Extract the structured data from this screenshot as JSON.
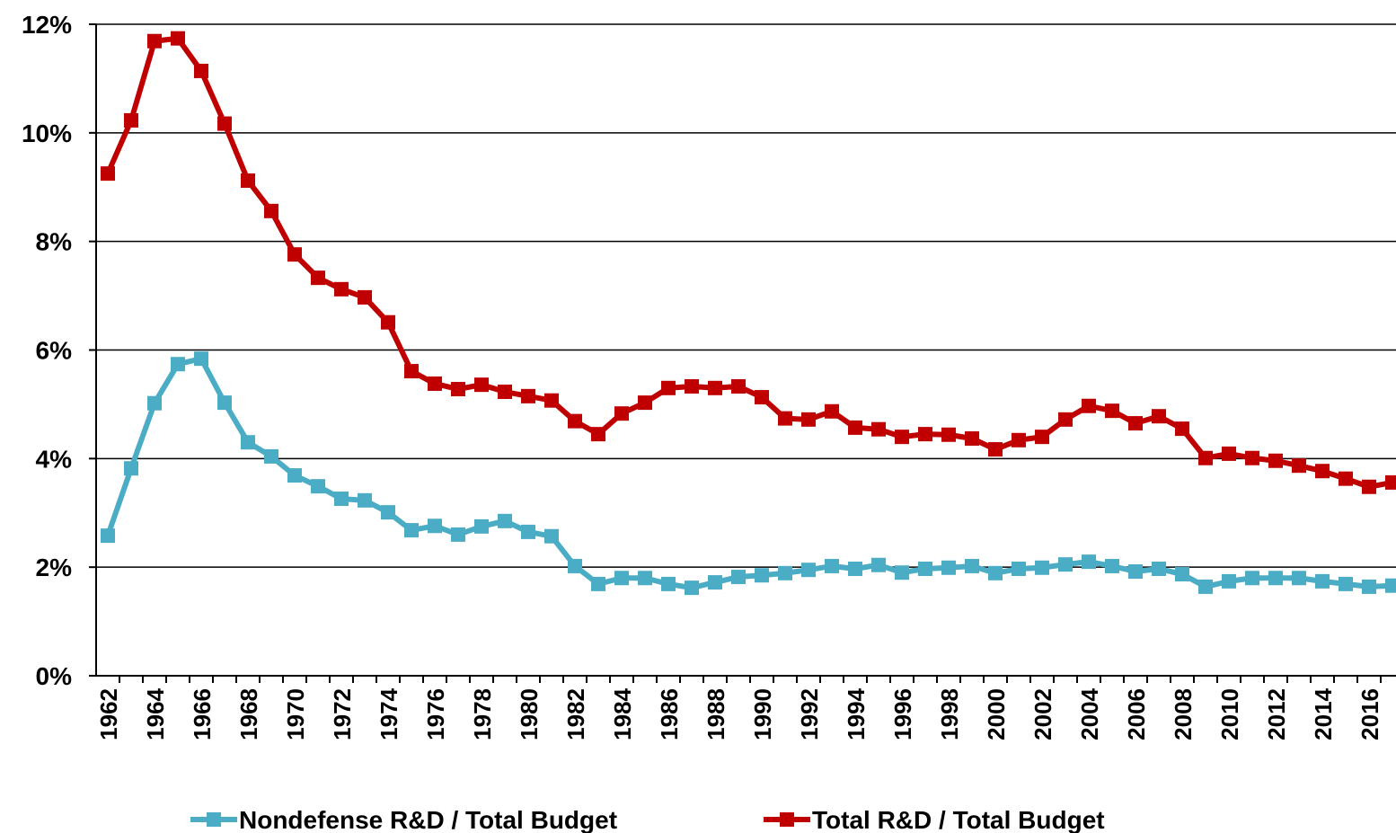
{
  "chart_data": {
    "type": "line",
    "categories": [
      "1962",
      null,
      "1964",
      null,
      "1966",
      null,
      "1968",
      null,
      "1970",
      null,
      "1972",
      null,
      "1974",
      null,
      "1976",
      null,
      "1978",
      null,
      "1980",
      null,
      "1982",
      null,
      "1984",
      null,
      "1986",
      null,
      "1988",
      null,
      "1990",
      null,
      "1992",
      null,
      "1994",
      null,
      "1996",
      null,
      "1998",
      null,
      "2000",
      null,
      "2002",
      null,
      "2004",
      null,
      "2006",
      null,
      "2008",
      null,
      "2010",
      null,
      "2012",
      null,
      "2014",
      null,
      "2016",
      null
    ],
    "series": [
      {
        "name": "Nondefense R&D / Total Budget",
        "color": "#4bacc6",
        "values": [
          2.58,
          3.82,
          5.02,
          5.74,
          5.84,
          5.03,
          4.3,
          4.04,
          3.69,
          3.49,
          3.26,
          3.23,
          3.01,
          2.68,
          2.76,
          2.6,
          2.75,
          2.85,
          2.65,
          2.57,
          2.02,
          1.69,
          1.8,
          1.8,
          1.69,
          1.62,
          1.72,
          1.82,
          1.85,
          1.89,
          1.95,
          2.02,
          1.97,
          2.04,
          1.9,
          1.97,
          1.99,
          2.02,
          1.89,
          1.97,
          1.99,
          2.05,
          2.1,
          2.02,
          1.92,
          1.97,
          1.87,
          1.64,
          1.74,
          1.8,
          1.8,
          1.8,
          1.74,
          1.69,
          1.64,
          1.66
        ]
      },
      {
        "name": "Total R&D / Total Budget",
        "color": "#c00000",
        "values": [
          9.25,
          10.23,
          11.69,
          11.74,
          11.14,
          10.17,
          9.12,
          8.56,
          7.76,
          7.33,
          7.12,
          6.97,
          6.51,
          5.61,
          5.38,
          5.28,
          5.36,
          5.23,
          5.15,
          5.07,
          4.69,
          4.45,
          4.83,
          5.03,
          5.3,
          5.33,
          5.3,
          5.33,
          5.13,
          4.74,
          4.72,
          4.87,
          4.57,
          4.54,
          4.4,
          4.45,
          4.44,
          4.37,
          4.17,
          4.34,
          4.4,
          4.72,
          4.97,
          4.88,
          4.65,
          4.78,
          4.55,
          4.01,
          4.09,
          4.01,
          3.96,
          3.87,
          3.77,
          3.63,
          3.48,
          3.56
        ]
      }
    ],
    "ylim": [
      0,
      12
    ],
    "yticks": [
      {
        "value": 0,
        "label": "0%"
      },
      {
        "value": 2,
        "label": "2%"
      },
      {
        "value": 4,
        "label": "4%"
      },
      {
        "value": 6,
        "label": "6%"
      },
      {
        "value": 8,
        "label": "8%"
      },
      {
        "value": 10,
        "label": "10%"
      },
      {
        "value": 12,
        "label": "12%"
      }
    ],
    "grid": true,
    "legend": "bottom"
  }
}
